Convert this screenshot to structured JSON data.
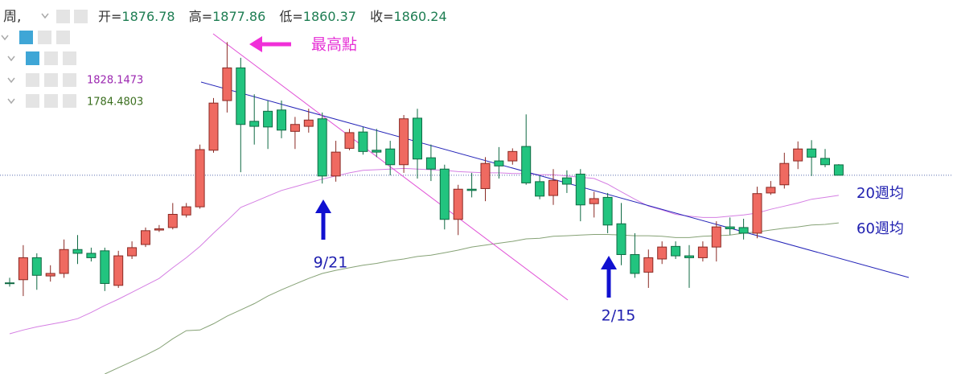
{
  "chart_data": {
    "type": "candlestick",
    "period_label": "周,",
    "ohlc_labels": [
      "开=",
      "高=",
      "低=",
      "收="
    ],
    "open": [
      1689,
      1694,
      1729,
      1700,
      1704,
      1742,
      1736,
      1740,
      1685,
      1732,
      1750,
      1773,
      1777,
      1797,
      1810,
      1900,
      1979,
      2031,
      1946,
      1962,
      1964,
      1930,
      1938,
      1950,
      1859,
      1903,
      1929,
      1900,
      1902,
      1877,
      1951,
      1888,
      1870,
      1790,
      1838,
      1839,
      1883,
      1883,
      1906,
      1850,
      1828,
      1856,
      1862,
      1815,
      1825,
      1783,
      1734,
      1706,
      1727,
      1747,
      1732,
      1729,
      1746,
      1778,
      1777,
      1768,
      1832,
      1845,
      1883,
      1902,
      1887,
      1876.78
    ],
    "high": [
      1697,
      1749,
      1736,
      1717,
      1758,
      1765,
      1745,
      1745,
      1740,
      1755,
      1777,
      1781,
      1816,
      1816,
      1909,
      1983,
      2072,
      2047,
      1989,
      1979,
      1979,
      1953,
      1966,
      1960,
      1915,
      1934,
      1937,
      1934,
      1915,
      1956,
      1966,
      1909,
      1877,
      1845,
      1864,
      1889,
      1905,
      1903,
      1957,
      1860,
      1870,
      1868,
      1870,
      1834,
      1832,
      1816,
      1768,
      1742,
      1755,
      1755,
      1749,
      1755,
      1787,
      1793,
      1791,
      1842,
      1851,
      1896,
      1914,
      1916,
      1902,
      1877.86
    ],
    "low": [
      1683,
      1668,
      1678,
      1691,
      1697,
      1719,
      1723,
      1676,
      1681,
      1727,
      1746,
      1770,
      1774,
      1793,
      1807,
      1896,
      1960,
      1865,
      1909,
      1902,
      1919,
      1902,
      1928,
      1847,
      1850,
      1900,
      1893,
      1889,
      1860,
      1864,
      1855,
      1851,
      1774,
      1765,
      1825,
      1819,
      1855,
      1877,
      1845,
      1822,
      1813,
      1832,
      1787,
      1793,
      1768,
      1717,
      1697,
      1681,
      1719,
      1727,
      1681,
      1723,
      1723,
      1765,
      1758,
      1760,
      1829,
      1839,
      1870,
      1859,
      1873,
      1860.37
    ],
    "close": [
      1688,
      1729,
      1701,
      1704,
      1742,
      1736,
      1729,
      1688,
      1732,
      1745,
      1772,
      1775,
      1798,
      1810,
      1901,
      1975,
      2031,
      1941,
      1938,
      1937,
      1932,
      1941,
      1948,
      1859,
      1897,
      1928,
      1898,
      1897,
      1877,
      1950,
      1886,
      1870,
      1790,
      1838,
      1836,
      1879,
      1875,
      1898,
      1848,
      1827,
      1852,
      1846,
      1813,
      1823,
      1781,
      1734,
      1704,
      1729,
      1746,
      1732,
      1729,
      1746,
      1778,
      1775,
      1768,
      1831,
      1841,
      1879,
      1902,
      1889,
      1877,
      1860.24
    ],
    "up_color": "#ef6a61",
    "down_color": "#22c47f",
    "ylim": [
      1544,
      2139
    ],
    "series": [
      {
        "name": "20週均",
        "color": "#d57fe3",
        "values": [
          1608,
          1614,
          1619,
          1623,
          1627,
          1632,
          1642,
          1653,
          1663,
          1674,
          1685,
          1696,
          1713,
          1729,
          1747,
          1768,
          1788,
          1809,
          1818,
          1827,
          1836,
          1842,
          1848,
          1854,
          1859,
          1864,
          1868,
          1869,
          1870,
          1871,
          1870,
          1869,
          1868,
          1866,
          1865,
          1864,
          1864,
          1863,
          1863,
          1861,
          1861,
          1859,
          1857,
          1855,
          1846,
          1834,
          1822,
          1811,
          1805,
          1798,
          1795,
          1793,
          1793,
          1795,
          1797,
          1800,
          1806,
          1811,
          1816,
          1822,
          1825,
          1828.1473
        ]
      },
      {
        "name": "60週均",
        "color": "#86a276",
        "values": [
          null,
          null,
          null,
          null,
          null,
          null,
          null,
          1544,
          1554,
          1564,
          1574,
          1585,
          1600,
          1613,
          1614,
          1624,
          1636,
          1646,
          1656,
          1668,
          1678,
          1687,
          1696,
          1704,
          1709,
          1713,
          1717,
          1720,
          1724,
          1727,
          1731,
          1733,
          1737,
          1741,
          1746,
          1749,
          1752,
          1755,
          1759,
          1760,
          1763,
          1764,
          1765,
          1766,
          1766,
          1765,
          1764,
          1764,
          1763,
          1761,
          1761,
          1763,
          1764,
          1765,
          1768,
          1770,
          1773,
          1776,
          1778,
          1781,
          1782,
          1784.4803
        ]
      }
    ],
    "annotations": [
      "最高點",
      "9/21",
      "2/15"
    ]
  }
}
